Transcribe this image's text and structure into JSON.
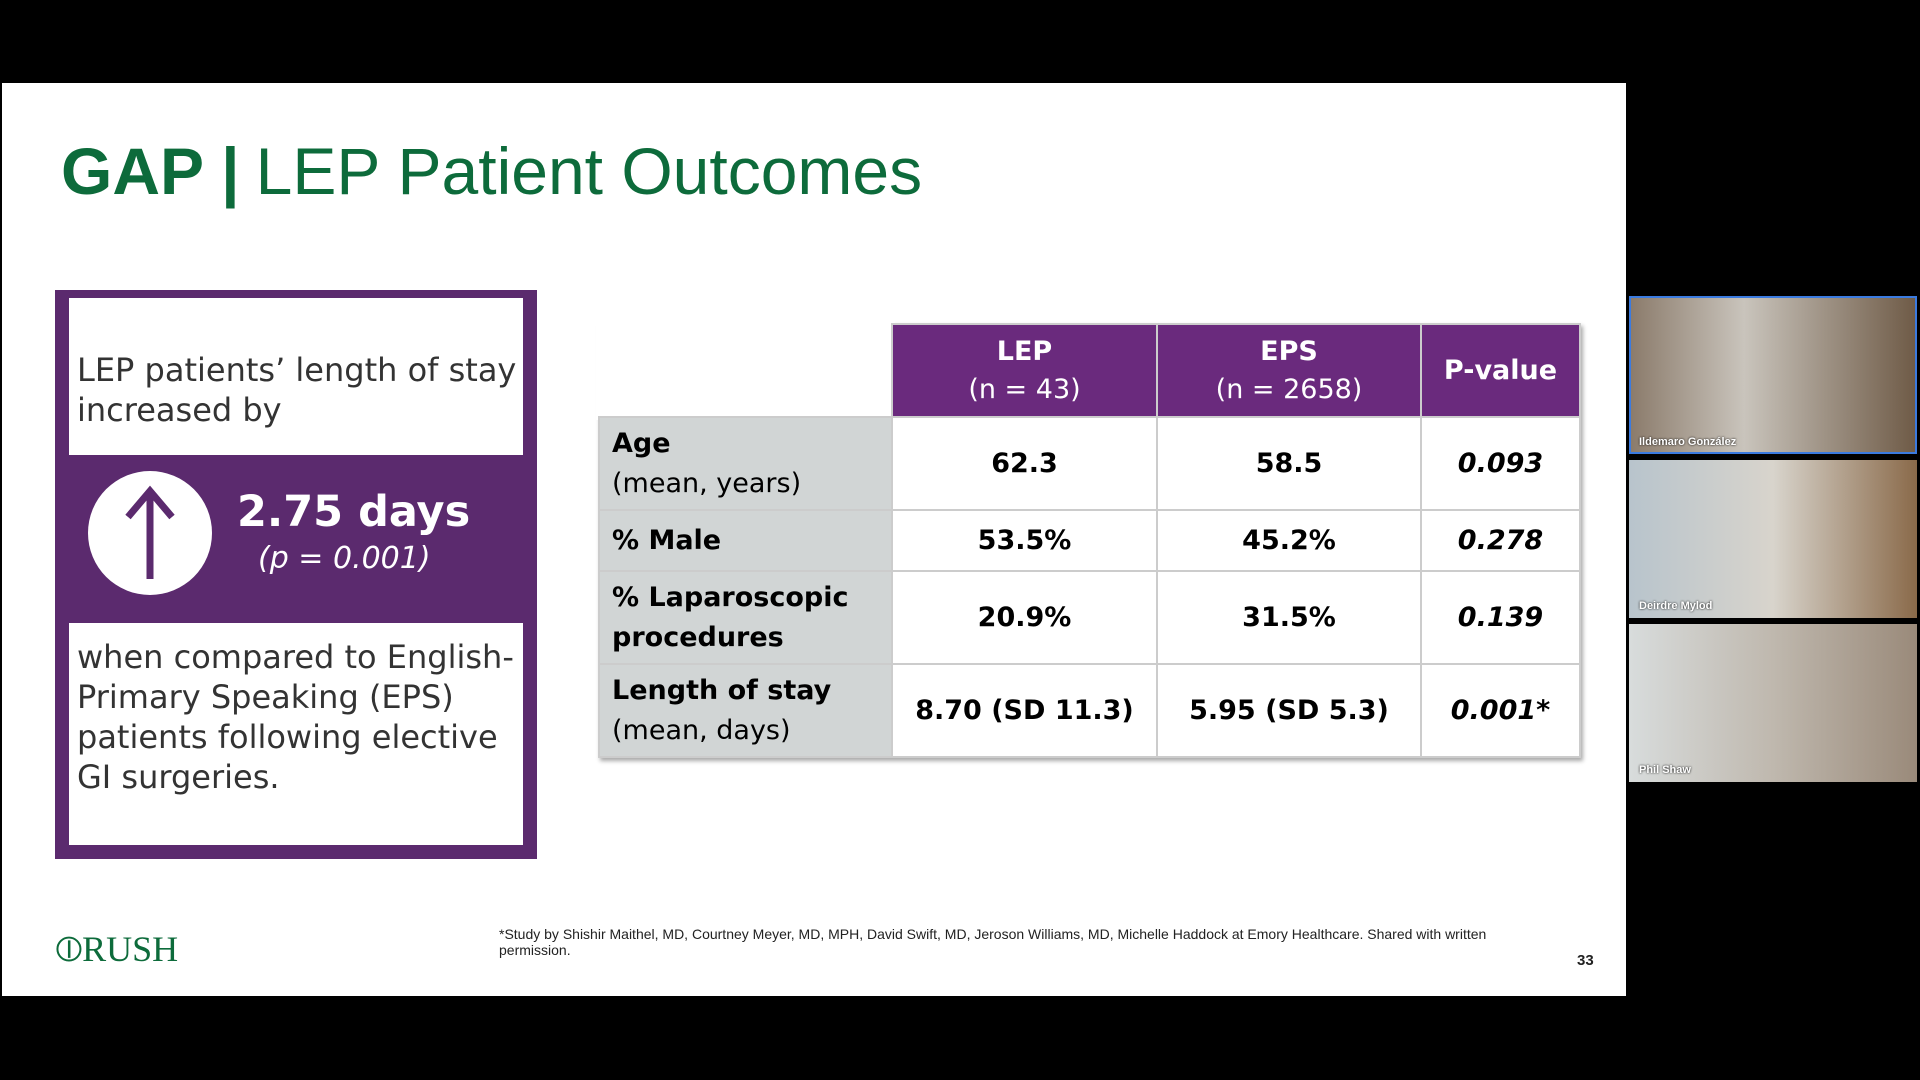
{
  "slide": {
    "title_prefix": "GAP |",
    "title": "LEP Patient Outcomes",
    "callout": {
      "top_text": "LEP patients’ length of stay increased by",
      "value": "2.75 days",
      "p_value": "(p = 0.001)",
      "bottom_text": "when compared to English-Primary Speaking (EPS) patients following elective GI surgeries."
    },
    "table": {
      "headers": [
        {
          "line1": "LEP",
          "line2": "(n = 43)"
        },
        {
          "line1": "EPS",
          "line2": "(n = 2658)"
        },
        {
          "line1": "P-value"
        }
      ],
      "rows": [
        {
          "label": "Age",
          "sublabel": "(mean, years)",
          "values": [
            "62.3",
            "58.5",
            "0.093"
          ]
        },
        {
          "label": "% Male",
          "values": [
            "53.5%",
            "45.2%",
            "0.278"
          ]
        },
        {
          "label": "% Laparoscopic procedures",
          "values": [
            "20.9%",
            "31.5%",
            "0.139"
          ]
        },
        {
          "label": "Length of stay",
          "sublabel": "(mean, days)",
          "values": [
            "8.70 (SD 11.3)",
            "5.95 (SD 5.3)",
            "0.001*"
          ]
        }
      ]
    },
    "logo": "RUSH",
    "footnote": "*Study by Shishir Maithel, MD, Courtney Meyer, MD, MPH, David Swift, MD, Jeroson Williams, MD, Michelle Haddock at Emory Healthcare. Shared with written permission.",
    "page_number": "33"
  },
  "participants": [
    {
      "name": "Ildemaro González"
    },
    {
      "name": "Deirdre Mylod"
    },
    {
      "name": "Phil Shaw"
    }
  ]
}
